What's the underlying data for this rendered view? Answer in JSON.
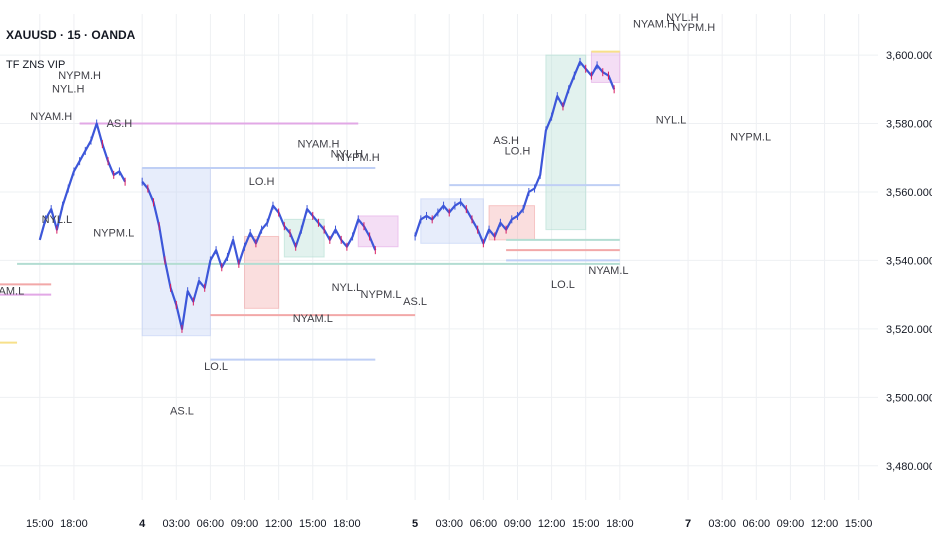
{
  "header": {
    "symbol_line": "XAUUSD · 15 · OANDA",
    "indicator_name": "TF ZNS VIP"
  },
  "colors": {
    "candle": "#3d57d9",
    "candle_wick": "#d81b60",
    "asia": "#bfcff5",
    "london": "#f2a8a8",
    "ny_am": "#b3ddd2",
    "ny_lunch": "#f7e08a",
    "ny_pm": "#e2a8e6",
    "gridline": "#eef0f3",
    "label_text": "#3f3f46"
  },
  "chart_data": {
    "type": "line",
    "title": "XAUUSD · 15 · OANDA",
    "xlabel": "",
    "ylabel": "",
    "ylim": [
      3470,
      3612
    ],
    "grid": true,
    "legend": "none",
    "y_ticks": [
      "3,600.000",
      "3,580.000",
      "3,560.000",
      "3,540.000",
      "3,520.000",
      "3,500.000",
      "3,480.000"
    ],
    "y_tick_values": [
      3600,
      3580,
      3560,
      3540,
      3520,
      3500,
      3480
    ],
    "x_ticks": [
      "15:00",
      "18:00",
      "4",
      "03:00",
      "06:00",
      "09:00",
      "12:00",
      "15:00",
      "18:00",
      "5",
      "03:00",
      "06:00",
      "09:00",
      "12:00",
      "15:00",
      "18:00",
      "7",
      "03:00",
      "06:00",
      "09:00",
      "12:00",
      "15:00"
    ],
    "x_tick_hours": [
      15,
      18,
      24,
      27,
      30,
      33,
      36,
      39,
      42,
      48,
      51,
      54,
      57,
      60,
      63,
      66,
      72,
      75,
      78,
      81,
      84,
      87
    ],
    "x_tick_bold": [
      "4",
      "5",
      "7"
    ],
    "series": [
      {
        "values": [
          [
            15,
            3546
          ],
          [
            15.5,
            3552
          ],
          [
            16,
            3555
          ],
          [
            16.5,
            3549
          ],
          [
            17,
            3556
          ],
          [
            17.5,
            3561
          ],
          [
            18,
            3566
          ],
          [
            18.5,
            3569
          ],
          [
            19,
            3572
          ],
          [
            19.5,
            3575
          ],
          [
            20,
            3580
          ],
          [
            20.5,
            3574
          ],
          [
            21,
            3569
          ],
          [
            21.5,
            3565
          ],
          [
            22,
            3566
          ],
          [
            22.5,
            3563
          ],
          [
            24,
            3563
          ],
          [
            24.5,
            3561
          ],
          [
            25,
            3557
          ],
          [
            25.5,
            3550
          ],
          [
            26,
            3540
          ],
          [
            26.5,
            3532
          ],
          [
            27,
            3527
          ],
          [
            27.5,
            3520
          ],
          [
            28,
            3531
          ],
          [
            28.5,
            3528
          ],
          [
            29,
            3534
          ],
          [
            29.5,
            3532
          ],
          [
            30,
            3540
          ],
          [
            30.5,
            3543
          ],
          [
            31,
            3538
          ],
          [
            31.5,
            3541
          ],
          [
            32,
            3546
          ],
          [
            32.5,
            3539
          ],
          [
            33,
            3544
          ],
          [
            33.5,
            3548
          ],
          [
            34,
            3545
          ],
          [
            34.5,
            3549
          ],
          [
            35,
            3551
          ],
          [
            35.5,
            3556
          ],
          [
            36,
            3554
          ],
          [
            36.5,
            3550
          ],
          [
            37,
            3548
          ],
          [
            37.5,
            3544
          ],
          [
            38,
            3549
          ],
          [
            38.5,
            3555
          ],
          [
            39,
            3553
          ],
          [
            39.5,
            3551
          ],
          [
            40,
            3549
          ],
          [
            40.5,
            3546
          ],
          [
            41,
            3549
          ],
          [
            41.5,
            3546
          ],
          [
            42,
            3544
          ],
          [
            42.5,
            3547
          ],
          [
            43,
            3552
          ],
          [
            43.5,
            3550
          ],
          [
            44,
            3547
          ],
          [
            44.5,
            3543
          ],
          [
            48,
            3547
          ],
          [
            48.5,
            3552
          ],
          [
            49,
            3553
          ],
          [
            49.5,
            3552
          ],
          [
            50,
            3554
          ],
          [
            50.5,
            3556
          ],
          [
            51,
            3554
          ],
          [
            51.5,
            3556
          ],
          [
            52,
            3557
          ],
          [
            52.5,
            3555
          ],
          [
            53,
            3552
          ],
          [
            53.5,
            3549
          ],
          [
            54,
            3545
          ],
          [
            54.5,
            3549
          ],
          [
            55,
            3547
          ],
          [
            55.5,
            3551
          ],
          [
            56,
            3549
          ],
          [
            56.5,
            3552
          ],
          [
            57,
            3553
          ],
          [
            57.5,
            3555
          ],
          [
            58,
            3560
          ],
          [
            58.5,
            3561
          ],
          [
            59,
            3565
          ],
          [
            59.5,
            3578
          ],
          [
            60,
            3582
          ],
          [
            60.5,
            3588
          ],
          [
            61,
            3585
          ],
          [
            61.5,
            3590
          ],
          [
            62,
            3594
          ],
          [
            62.5,
            3598
          ],
          [
            63,
            3596
          ],
          [
            63.5,
            3594
          ],
          [
            64,
            3597
          ],
          [
            64.5,
            3595
          ],
          [
            65,
            3594
          ],
          [
            65.5,
            3590
          ]
        ]
      }
    ],
    "sessions": [
      {
        "kind": "asia",
        "label_high": "AS.H",
        "label_low": "AS.L",
        "x0": 24,
        "x1": 30,
        "y_high": 3567,
        "y_low": 3518
      },
      {
        "kind": "london",
        "label_high": "LO.H",
        "label_low": "LO.L",
        "x0": 33,
        "x1": 36,
        "y_high": 3547,
        "y_low": 3526
      },
      {
        "kind": "ny_am",
        "label_high": "NYAM.H",
        "label_low": "NYAM.L",
        "x0": 36.5,
        "x1": 40,
        "y_high": 3552,
        "y_low": 3541
      },
      {
        "kind": "ny_pm",
        "label_high": "NYPM.H",
        "label_low": "NYPM.L",
        "x0": 43,
        "x1": 46.5,
        "y_high": 3553,
        "y_low": 3544
      },
      {
        "kind": "asia",
        "label_high": "AS.H",
        "label_low": "AS.L",
        "x0": 48.5,
        "x1": 54,
        "y_high": 3558,
        "y_low": 3545
      },
      {
        "kind": "london",
        "label_high": "LO.H",
        "label_low": "LO.L",
        "x0": 54.5,
        "x1": 58.5,
        "y_high": 3556,
        "y_low": 3546
      },
      {
        "kind": "ny_am",
        "label_high": "NYAM.H",
        "label_low": "NYAM.L",
        "x0": 59.5,
        "x1": 63,
        "y_high": 3600,
        "y_low": 3549
      },
      {
        "kind": "ny_pm",
        "label_high": "NYPM.H",
        "label_low": "NYPM.L",
        "x0": 63.5,
        "x1": 66,
        "y_high": 3601,
        "y_low": 3592
      }
    ],
    "levels": [
      {
        "label": "NYAM.H",
        "kind": "ny_pm",
        "value": 3580,
        "x0": 18.5,
        "x1": 43
      },
      {
        "label": "LO.H",
        "kind": "asia",
        "value": 3567,
        "x0": 24,
        "x1": 44.5
      },
      {
        "label": "AS.L",
        "kind": "london",
        "value": 3524,
        "x0": 30,
        "x1": 48
      },
      {
        "label": "LO.L",
        "kind": "asia",
        "value": 3511,
        "x0": 30,
        "x1": 44.5
      },
      {
        "label": "NYAM.L",
        "kind": "ny_am",
        "value": 3539,
        "x0": 13,
        "x1": 66
      },
      {
        "label": "AS.H",
        "kind": "asia",
        "value": 3562,
        "x0": 51,
        "x1": 66
      },
      {
        "label": "NYL.L",
        "kind": "ny_am",
        "value": 3546,
        "x0": 56,
        "x1": 66
      },
      {
        "label": "LO.L",
        "kind": "london",
        "value": 3543,
        "x0": 56,
        "x1": 66
      },
      {
        "label": "NYAM.L",
        "kind": "asia",
        "value": 3540,
        "x0": 56,
        "x1": 66
      },
      {
        "label": "NYPM.H",
        "kind": "ny_lunch",
        "value": 3601,
        "x0": 63.5,
        "x1": 66
      },
      {
        "label": "AS.L",
        "kind": "ny_pm",
        "value": 3530,
        "x0": 11,
        "x1": 16
      },
      {
        "label": "LO.L",
        "kind": "london",
        "value": 3533,
        "x0": 11,
        "x1": 16
      },
      {
        "label": "NYAM.L",
        "kind": "ny_lunch",
        "value": 3516,
        "x0": 11,
        "x1": 13
      }
    ],
    "annotations": [
      {
        "text": "NYPM.H",
        "x": 18.5,
        "y": 3593
      },
      {
        "text": "NYL.H",
        "x": 17.5,
        "y": 3589
      },
      {
        "text": "NYAM.H",
        "x": 16,
        "y": 3581
      },
      {
        "text": "AS.H",
        "x": 22,
        "y": 3579
      },
      {
        "text": "NYL.L",
        "x": 16.5,
        "y": 3551
      },
      {
        "text": "NYPM.L",
        "x": 21.5,
        "y": 3547
      },
      {
        "text": "AM.L",
        "x": 12.5,
        "y": 3530
      },
      {
        "text": "LO.H",
        "x": 34.5,
        "y": 3562
      },
      {
        "text": "NYAM.H",
        "x": 39.5,
        "y": 3573
      },
      {
        "text": "NYL.H",
        "x": 42,
        "y": 3570
      },
      {
        "text": "NYPM.H",
        "x": 43,
        "y": 3569
      },
      {
        "text": "LO.L",
        "x": 30.5,
        "y": 3508
      },
      {
        "text": "AS.L",
        "x": 27.5,
        "y": 3495
      },
      {
        "text": "NYAM.L",
        "x": 39,
        "y": 3522
      },
      {
        "text": "NYL.L",
        "x": 42,
        "y": 3531
      },
      {
        "text": "NYPM.L",
        "x": 45,
        "y": 3529
      },
      {
        "text": "AS.L",
        "x": 48,
        "y": 3527
      },
      {
        "text": "AS.H",
        "x": 56,
        "y": 3574
      },
      {
        "text": "LO.H",
        "x": 57,
        "y": 3571
      },
      {
        "text": "LO.L",
        "x": 61,
        "y": 3532
      },
      {
        "text": "NYAM.L",
        "x": 65,
        "y": 3536
      },
      {
        "text": "NYAM.H",
        "x": 69,
        "y": 3608
      },
      {
        "text": "NYL.H",
        "x": 71.5,
        "y": 3610
      },
      {
        "text": "NYPM.H",
        "x": 72.5,
        "y": 3607
      },
      {
        "text": "NYL.L",
        "x": 70.5,
        "y": 3580
      },
      {
        "text": "NYPM.L",
        "x": 77.5,
        "y": 3575
      }
    ]
  }
}
